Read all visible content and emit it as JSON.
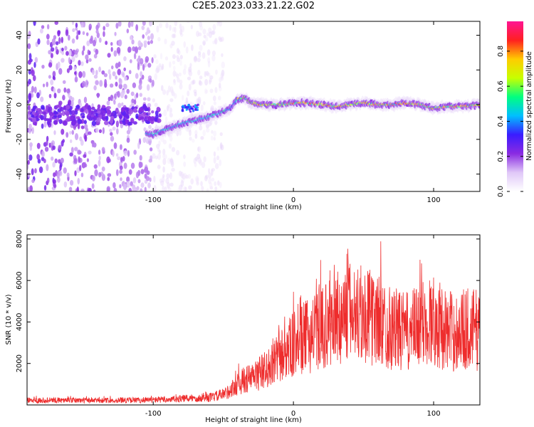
{
  "title": "C2E5.2023.033.21.22.G02",
  "colors": {
    "snr_line": "#ee2c2c",
    "frame": "#000000",
    "background": "#ffffff"
  },
  "chart_data": [
    {
      "type": "heatmap",
      "xlabel": "Height of straight line (km)",
      "ylabel": "Frequency (Hz)",
      "xlim": [
        -190,
        133
      ],
      "ylim": [
        -50,
        48
      ],
      "xticks": [
        -100,
        0,
        100
      ],
      "yticks": [
        -40,
        -20,
        0,
        20,
        40
      ],
      "colorbar": {
        "label": "Normalized spectral amplitude",
        "range": [
          0,
          0.97
        ],
        "ticks": [
          0.0,
          0.2,
          0.4,
          0.6,
          0.8
        ],
        "colormap": [
          "#ffffff",
          "#e0c8f8",
          "#8a2be2",
          "#3a1cff",
          "#00bfff",
          "#00ff80",
          "#c8ff00",
          "#ffcc00",
          "#ff2020",
          "#ff1493"
        ]
      },
      "ridge": {
        "x": [
          -100,
          -90,
          -80,
          -70,
          -60,
          -50,
          -45,
          -40,
          -35,
          -30,
          -20,
          -10,
          0,
          10,
          20,
          30,
          40,
          50,
          60,
          70,
          80,
          90,
          100,
          110,
          120,
          133
        ],
        "y": [
          -17,
          -14,
          -11,
          -9,
          -7,
          -4,
          -2,
          3,
          4,
          1,
          0,
          0,
          1,
          1,
          0,
          -1,
          0,
          1,
          0,
          0,
          1,
          0,
          -2,
          -1,
          -1,
          0
        ]
      }
    },
    {
      "type": "line",
      "xlabel": "Height of straight line (km)",
      "ylabel": "SNR (10 * v/v)",
      "xlim": [
        -190,
        133
      ],
      "ylim": [
        0,
        8200
      ],
      "xticks": [
        -100,
        0,
        100
      ],
      "yticks": [
        2000,
        4000,
        6000,
        8000
      ],
      "series": [
        {
          "x": [
            -190,
            -170,
            -150,
            -130,
            -110,
            -90,
            -80,
            -70,
            -60,
            -50,
            -45,
            -40,
            -35,
            -30,
            -25,
            -20,
            -15,
            -10,
            -5,
            0,
            5,
            10,
            15,
            20,
            25,
            30,
            35,
            40,
            45,
            50,
            55,
            60,
            65,
            70,
            75,
            80,
            85,
            90,
            95,
            100,
            105,
            110,
            115,
            120,
            125,
            133
          ],
          "values": [
            220,
            230,
            220,
            220,
            230,
            260,
            300,
            330,
            350,
            500,
            700,
            1000,
            1200,
            1300,
            1500,
            1700,
            1900,
            2300,
            2600,
            2900,
            3100,
            3300,
            3500,
            3700,
            3900,
            4100,
            4300,
            4500,
            4400,
            4300,
            4200,
            4100,
            3900,
            3700,
            3600,
            3500,
            3600,
            3800,
            4000,
            4100,
            3800,
            3600,
            3500,
            3600,
            3700,
            3600
          ]
        }
      ]
    }
  ]
}
